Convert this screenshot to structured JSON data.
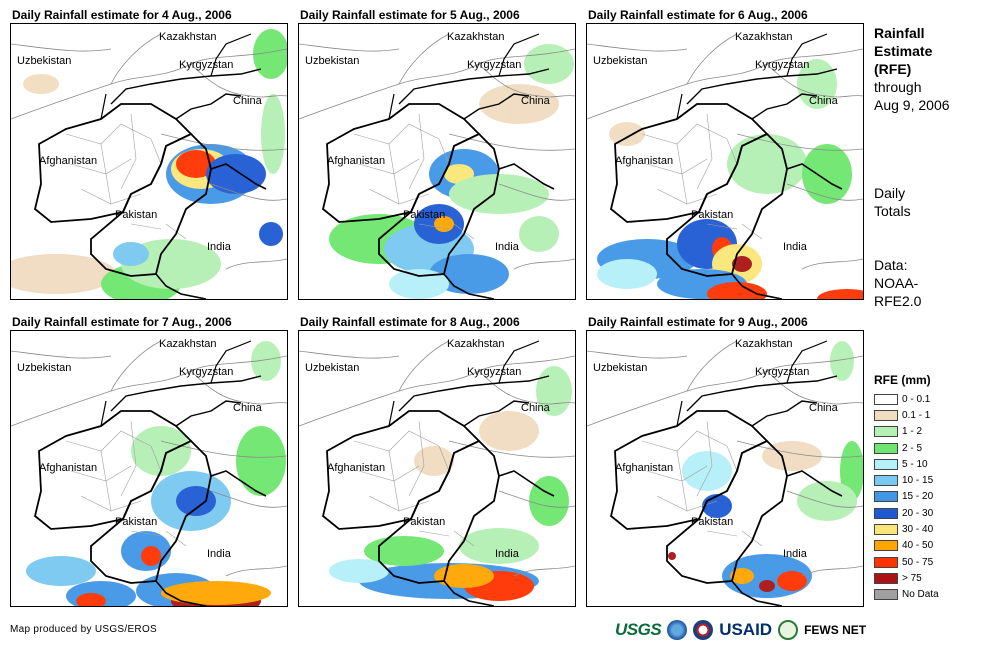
{
  "panels": [
    {
      "title": "Daily Rainfall estimate for 4 Aug., 2006"
    },
    {
      "title": "Daily Rainfall estimate for 5 Aug., 2006"
    },
    {
      "title": "Daily Rainfall estimate for 6 Aug., 2006"
    },
    {
      "title": "Daily Rainfall estimate for 7 Aug., 2006"
    },
    {
      "title": "Daily Rainfall estimate for 8 Aug., 2006"
    },
    {
      "title": "Daily Rainfall estimate for 9 Aug., 2006"
    }
  ],
  "map_labels": {
    "kazakhstan": "Kazakhstan",
    "uzbekistan": "Uzbekistan",
    "kyrgyzstan": "Kyrgyzstan",
    "china": "China",
    "afghanistan": "Afghanistan",
    "pakistan": "Pakistan",
    "india": "India"
  },
  "side_text": {
    "line1": "Rainfall",
    "line2": "Estimate",
    "line3": "(RFE)",
    "line4": "through",
    "line5": "Aug 9, 2006",
    "daily1": "Daily",
    "daily2": "Totals",
    "data1": "Data:",
    "data2": "NOAA-",
    "data3": "RFE2.0"
  },
  "legend": {
    "title": "RFE (mm)",
    "items": [
      {
        "label": "0 - 0.1",
        "color": "#ffffff"
      },
      {
        "label": "0.1 - 1",
        "color": "#f0dcc0"
      },
      {
        "label": "1 - 2",
        "color": "#b4f0b4"
      },
      {
        "label": "2 - 5",
        "color": "#6ee66e"
      },
      {
        "label": "5 - 10",
        "color": "#b4f0f8"
      },
      {
        "label": "10 - 15",
        "color": "#78c8f0"
      },
      {
        "label": "15 - 20",
        "color": "#4196e6"
      },
      {
        "label": "20 - 30",
        "color": "#1e5ad2"
      },
      {
        "label": "30 - 40",
        "color": "#fae678"
      },
      {
        "label": "40 - 50",
        "color": "#ffa500"
      },
      {
        "label": "50 - 75",
        "color": "#ff3200"
      },
      {
        "label": "> 75",
        "color": "#aa1414"
      },
      {
        "label": "No Data",
        "color": "#a0a0a0"
      }
    ]
  },
  "credit": "Map produced by USGS/EROS",
  "logos": {
    "usgs": "USGS",
    "usaid": "USAID",
    "fews": "FEWS NET"
  }
}
